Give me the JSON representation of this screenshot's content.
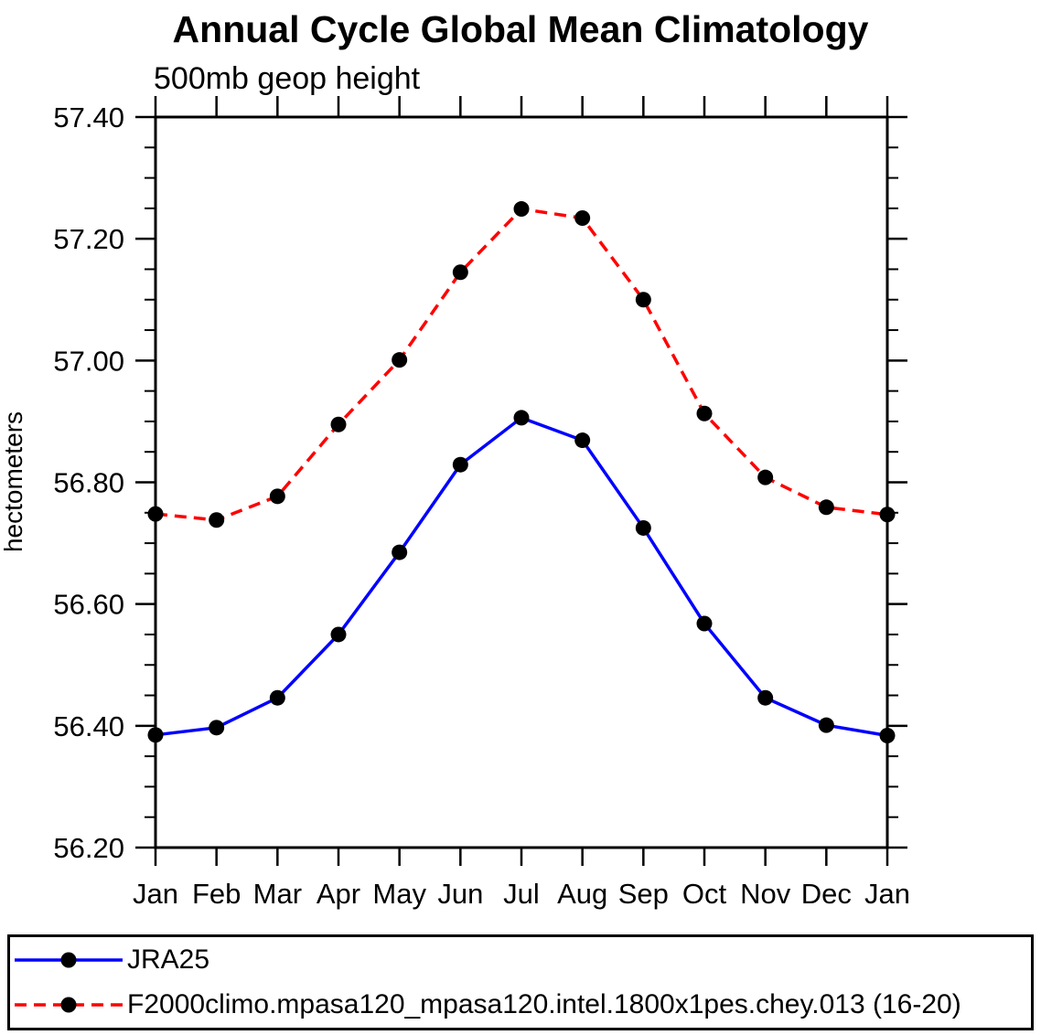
{
  "chart_data": {
    "type": "line",
    "title": "Annual Cycle Global Mean Climatology",
    "subtitle": "500mb geop height",
    "ylabel": "hectometers",
    "xlabel": "",
    "categories": [
      "Jan",
      "Feb",
      "Mar",
      "Apr",
      "May",
      "Jun",
      "Jul",
      "Aug",
      "Sep",
      "Oct",
      "Nov",
      "Dec",
      "Jan"
    ],
    "ylim": [
      56.2,
      57.4
    ],
    "yticks": [
      {
        "value": 56.2,
        "label": "56.20"
      },
      {
        "value": 56.4,
        "label": "56.40"
      },
      {
        "value": 56.6,
        "label": "56.60"
      },
      {
        "value": 56.8,
        "label": "56.80"
      },
      {
        "value": 57.0,
        "label": "57.00"
      },
      {
        "value": 57.2,
        "label": "57.20"
      },
      {
        "value": 57.4,
        "label": "57.40"
      }
    ],
    "y_minor_step": 0.05,
    "grid": false,
    "legend_position": "bottom-box",
    "axis_color": "#000000",
    "marker_color": "#000000",
    "marker_shape": "filled-circle",
    "series": [
      {
        "name": "JRA25",
        "color": "#0000ff",
        "line_style": "solid",
        "values": [
          56.385,
          56.397,
          56.446,
          56.55,
          56.685,
          56.829,
          56.906,
          56.869,
          56.725,
          56.568,
          56.446,
          56.401,
          56.384
        ]
      },
      {
        "name": "F2000climo.mpasa120_mpasa120.intel.1800x1pes.chey.013 (16-20)",
        "color": "#ff0000",
        "line_style": "dashed",
        "values": [
          56.748,
          56.738,
          56.777,
          56.895,
          57.001,
          57.145,
          57.249,
          57.234,
          57.1,
          56.913,
          56.808,
          56.759,
          56.747
        ]
      }
    ]
  }
}
